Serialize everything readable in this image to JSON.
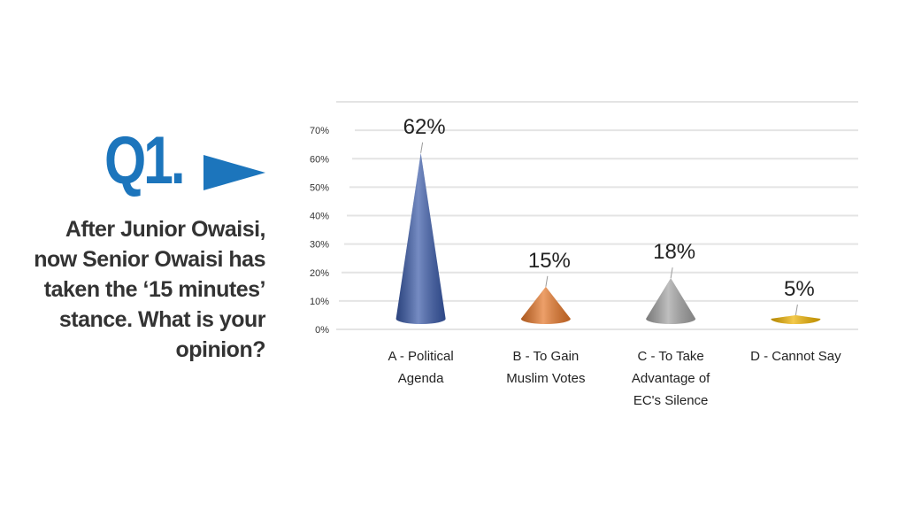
{
  "question_number": "Q1.",
  "question_lines": [
    "After Junior Owaisi,",
    "now Senior Owaisi has",
    "taken the ‘15 minutes’",
    "stance. What is your",
    "opinion?"
  ],
  "chart_data": {
    "type": "cone",
    "categories": [
      "A - Political Agenda",
      "B - To Gain Muslim Votes",
      "C - To Take Advantage of EC's Silence",
      "D - Cannot Say"
    ],
    "values": [
      62,
      15,
      18,
      5
    ],
    "value_labels": [
      "62%",
      "15%",
      "18%",
      "5%"
    ],
    "colors": [
      "#3a5aa8",
      "#e5772a",
      "#a3a3a3",
      "#efb300"
    ],
    "ylim": [
      0,
      80
    ],
    "yticks": [
      {
        "value": 0,
        "label": "0%"
      },
      {
        "value": 10,
        "label": "10%"
      },
      {
        "value": 20,
        "label": "20%"
      },
      {
        "value": 30,
        "label": "30%"
      },
      {
        "value": 40,
        "label": "40%"
      },
      {
        "value": 50,
        "label": "50%"
      },
      {
        "value": 60,
        "label": "60%"
      },
      {
        "value": 70,
        "label": "70%"
      }
    ],
    "grid": true
  }
}
